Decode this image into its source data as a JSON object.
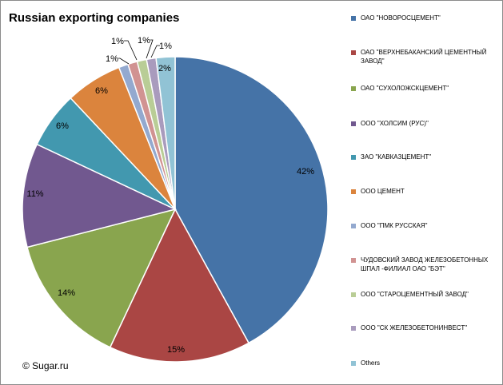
{
  "chart_data": {
    "type": "pie",
    "title": "Russian exporting companies",
    "source": "© Sugar.ru",
    "slices": [
      {
        "label": "ОАО \"НОВОРОСЦЕМЕНТ\"",
        "value": 42,
        "display": "42%",
        "color": "#4573A7"
      },
      {
        "label": "ОАО \"ВЕРХНЕБАКАНСКИЙ ЦЕМЕНТНЫЙ ЗАВОД\"",
        "value": 15,
        "display": "15%",
        "color": "#AA4644"
      },
      {
        "label": "ОАО \"СУХОЛОЖСКЦЕМЕНТ\"",
        "value": 14,
        "display": "14%",
        "color": "#89A54E"
      },
      {
        "label": "ООО \"ХОЛСИМ (РУС)\"",
        "value": 11,
        "display": "11%",
        "color": "#71588F"
      },
      {
        "label": "ЗАО \"КАВКАЗЦЕМЕНТ\"",
        "value": 6,
        "display": "6%",
        "color": "#4298AF"
      },
      {
        "label": "ООО ЦЕМЕНТ",
        "value": 6,
        "display": "6%",
        "color": "#DB843D"
      },
      {
        "label": "ООО \"ПМК РУССКАЯ\"",
        "value": 1,
        "display": "1%",
        "color": "#93A9CF"
      },
      {
        "label": "ЧУДОВСКИЙ ЗАВОД ЖЕЛЕЗОБЕТОННЫХ ШПАЛ -ФИЛИАЛ ОАО \"БЭТ\"",
        "value": 1,
        "display": "1%",
        "color": "#D19392"
      },
      {
        "label": "ООО \"СТАРОЦЕМЕНТНЫЙ ЗАВОД\"",
        "value": 1,
        "display": "1%",
        "color": "#B9CD96"
      },
      {
        "label": "ООО \"СК ЖЕЛЕЗОБЕТОНИНВЕСТ\"",
        "value": 1,
        "display": "1%",
        "color": "#A99BBD"
      },
      {
        "label": "Others",
        "value": 2,
        "display": "2%",
        "color": "#91C3D5"
      }
    ],
    "legend_position": "right"
  }
}
